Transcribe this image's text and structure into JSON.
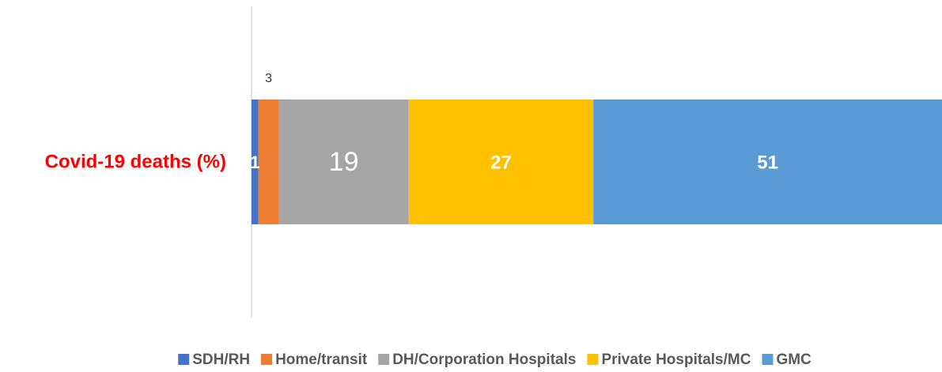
{
  "chart_data": {
    "type": "stacked-bar-horizontal",
    "categories": [
      "Covid-19 deaths (%)"
    ],
    "xlim": [
      0,
      101
    ],
    "series": [
      {
        "name": "SDH/RH",
        "color": "#4472c4",
        "values": [
          1
        ]
      },
      {
        "name": "Home/transit",
        "color": "#ed7d31",
        "values": [
          3
        ]
      },
      {
        "name": "DH/Corporation Hospitals",
        "color": "#a5a5a5",
        "values": [
          19
        ]
      },
      {
        "name": "Private Hospitals/MC",
        "color": "#ffc000",
        "values": [
          27
        ]
      },
      {
        "name": "GMC",
        "color": "#5b9bd5",
        "values": [
          51
        ]
      }
    ],
    "legend": "bottom"
  }
}
